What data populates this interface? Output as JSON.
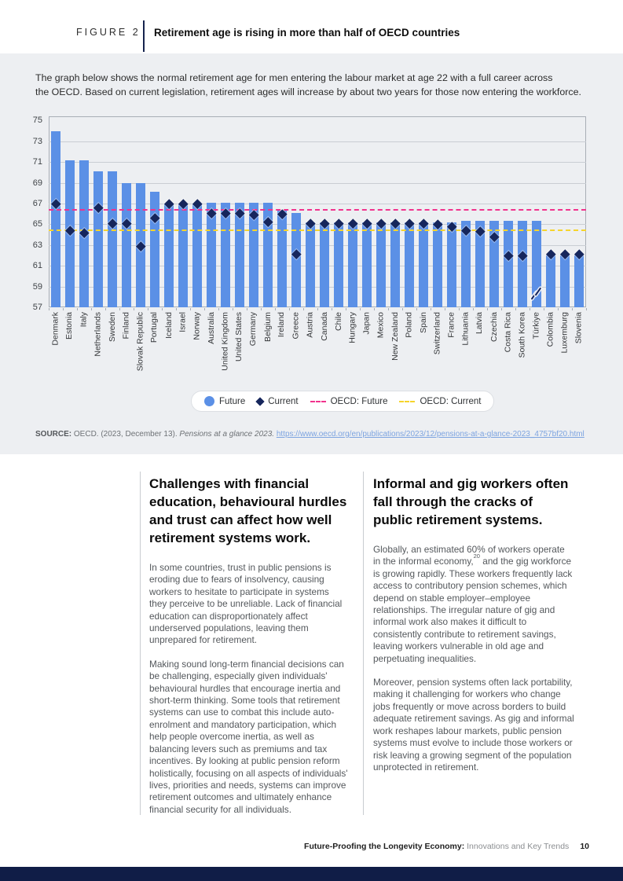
{
  "figure_header": {
    "label": "FIGURE 2",
    "title": "Retirement age is rising in more than half of OECD countries"
  },
  "intro": {
    "line1": "The graph below shows the normal retirement age for men entering the labour market at age 22 with a full career across",
    "line2": "the OECD. Based on current legislation, retirement ages will increase by about two years for those now entering the workforce."
  },
  "chart_data": {
    "type": "bar",
    "title": "",
    "xlabel": "",
    "ylabel": "",
    "ylim": [
      57,
      75
    ],
    "yticks": [
      57,
      59,
      61,
      63,
      65,
      67,
      69,
      71,
      73,
      75
    ],
    "grid": true,
    "legend": [
      "Future",
      "Current",
      "OECD: Future",
      "OECD: Current"
    ],
    "legend_position": "bottom-center",
    "bar_color": "#5b90e6",
    "diamond_color": "#16265c",
    "categories": [
      "Denmark",
      "Estonia",
      "Italy",
      "Netherlands",
      "Sweden",
      "Finland",
      "Slovak Republic",
      "Portugal",
      "Iceland",
      "Israel",
      "Norway",
      "Australia",
      "United Kingdom",
      "United States",
      "Germany",
      "Belgium",
      "Ireland",
      "Greece",
      "Austria",
      "Canada",
      "Chile",
      "Hungary",
      "Japan",
      "Mexico",
      "New Zealand",
      "Poland",
      "Spain",
      "Switzerland",
      "France",
      "Lithuania",
      "Latvia",
      "Czechia",
      "Costa Rica",
      "South Korea",
      "Türkiye",
      "Colombia",
      "Luxemburg",
      "Slovenia"
    ],
    "series": [
      {
        "name": "Future",
        "type": "bar",
        "values": [
          74,
          71.2,
          71.2,
          70.1,
          70.1,
          69,
          69,
          68.1,
          67,
          67,
          67,
          67.1,
          67.1,
          67.1,
          67.1,
          67.1,
          66.3,
          66.1,
          65.2,
          65.2,
          65.2,
          65.2,
          65.2,
          65.2,
          65.2,
          65.2,
          65.2,
          65.2,
          65.2,
          65.3,
          65.3,
          65.3,
          65.3,
          65.3,
          65.3,
          62,
          62,
          62
        ]
      },
      {
        "name": "Current",
        "type": "scatter-diamond",
        "values": [
          67,
          64.4,
          64.2,
          66.6,
          65.1,
          65.1,
          62.9,
          65.6,
          67,
          67,
          67,
          66.1,
          66.1,
          66.1,
          65.9,
          65.2,
          66,
          62.1,
          65.1,
          65.1,
          65.1,
          65.1,
          65.1,
          65.1,
          65.1,
          65.1,
          65.1,
          65,
          64.8,
          64.4,
          64.3,
          63.8,
          62,
          62,
          null,
          62.1,
          62.1,
          62.1
        ]
      }
    ],
    "reference_lines": [
      {
        "label": "OECD: Future",
        "value": 66.4,
        "style": "dashed",
        "color": "#f1338d"
      },
      {
        "label": "OECD: Current",
        "value": 64.4,
        "style": "dotted",
        "color": "#f6d42c"
      }
    ],
    "axis_break_category": "Türkiye"
  },
  "source": {
    "prefix": "SOURCE:",
    "citation": " OECD. (2023, December 13). ",
    "work": "Pensions at a glance 2023. ",
    "link": "https://www.oecd.org/en/publications/2023/12/pensions-at-a-glance-2023_4757bf20.html"
  },
  "columns": {
    "left": {
      "heading": "Challenges with financial education, behavioural hurdles and trust can affect how well retirement systems work.",
      "p1": "In some countries, trust in public pensions is eroding due to fears of insolvency, causing workers to hesitate to participate in systems they perceive to be unreliable. Lack of financial education can disproportionately affect underserved populations, leaving them unprepared for retirement.",
      "p2": "Making sound long-term financial decisions can be challenging, especially given individuals' behavioural hurdles that encourage inertia and short-term thinking. Some tools that retirement systems can use to combat this include auto-enrolment and mandatory participation, which help people overcome inertia, as well as balancing levers such as premiums and tax incentives. By looking at public pension reform holistically, focusing on all aspects of individuals' lives, priorities and needs, systems can improve retirement outcomes and ultimately enhance financial security for all individuals."
    },
    "right": {
      "heading": "Informal and gig workers often fall through the cracks of public retirement systems.",
      "p1a": "Globally, an estimated 60% of workers operate in the informal economy,",
      "p1sup": "20",
      "p1b": " and the gig workforce is growing rapidly. These workers frequently lack access to contributory pension schemes, which depend on stable employer–employee relationships. The irregular nature of gig and informal work also makes it difficult to consistently contribute to retirement savings, leaving workers vulnerable in old age and perpetuating inequalities.",
      "p2": "Moreover, pension systems often lack portability, making it challenging for workers who change jobs frequently or move across borders to build adequate retirement savings. As gig and informal work reshapes labour markets, public pension systems must evolve to include those workers or risk leaving a growing segment of the population unprotected in retirement."
    }
  },
  "footer": {
    "title_bold": "Future-Proofing the Longevity Economy:",
    "title_regular": " Innovations and Key Trends",
    "page": "10"
  },
  "colors": {
    "bar_blue": "#5b90e6",
    "diamond_navy": "#16265c",
    "oecd_future_pink": "#f1338d",
    "oecd_current_yellow": "#f6d42c",
    "band_gray": "#edeff2",
    "bottom_bar_navy": "#101d47",
    "link_blue": "#7da4e0"
  }
}
